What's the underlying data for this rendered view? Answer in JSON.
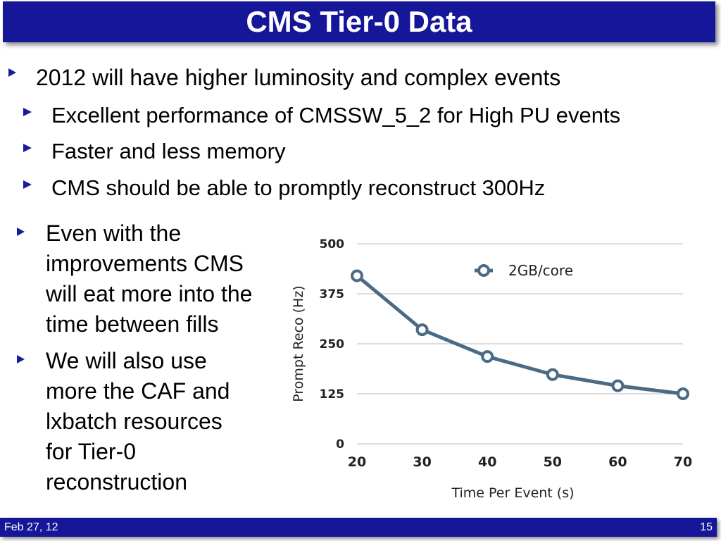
{
  "slide": {
    "title": "CMS Tier-0 Data",
    "bullets": {
      "b1": "2012 will have higher luminosity and complex events",
      "b2": "Excellent performance of CMSSW_5_2 for High PU events",
      "b3": "Faster and less memory",
      "b4": "CMS should be able to promptly reconstruct 300Hz",
      "b5": "Even with the\nimprovements CMS\nwill eat more into the\ntime between fills",
      "b6": "We will also use\nmore the CAF and\nlxbatch resources\nfor Tier-0\nreconstruction"
    },
    "footer": {
      "date": "Feb 27, 12",
      "page": "15"
    },
    "colors": {
      "title_bar": "#161699",
      "bullet_arrow": "#1a1aa0",
      "series_line": "#4a6a86"
    }
  },
  "chart_data": {
    "type": "line",
    "title": "",
    "xlabel": "Time Per Event (s)",
    "ylabel": "Prompt Reco (Hz)",
    "x": [
      20,
      30,
      40,
      50,
      60,
      70
    ],
    "x_tick_labels": [
      "20",
      "30",
      "40",
      "50",
      "60",
      "70"
    ],
    "y_ticks": [
      0,
      125,
      250,
      375,
      500
    ],
    "y_tick_labels": [
      "0",
      "125",
      "250",
      "375",
      "500"
    ],
    "ylim": [
      0,
      500
    ],
    "xlim": [
      20,
      70
    ],
    "grid": true,
    "legend_position": "top-right",
    "series": [
      {
        "name": "2GB/core",
        "values": [
          420,
          285,
          218,
          173,
          145,
          125
        ]
      }
    ]
  }
}
